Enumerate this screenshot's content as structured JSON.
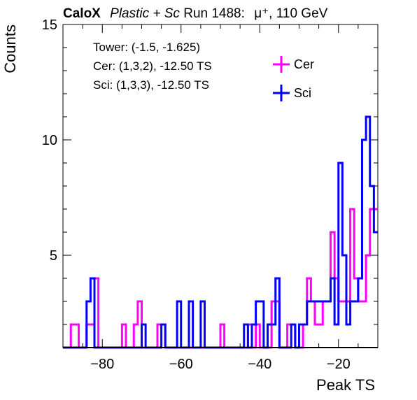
{
  "chart_data": {
    "type": "histogram",
    "title": {
      "experiment": "CaloX",
      "material_italic": "Plastic + Sc",
      "run": "Run 1488:",
      "particle": "μ⁺, 110 GeV"
    },
    "xlabel": "Peak TS",
    "ylabel": "Counts",
    "xlim": [
      -90,
      -10
    ],
    "ylim": [
      1,
      15
    ],
    "log_y": false,
    "x_ticks": [
      -80,
      -60,
      -40,
      -20
    ],
    "x_tick_labels": [
      "−80",
      "−60",
      "−40",
      "−20"
    ],
    "y_ticks": [
      5,
      10,
      15
    ],
    "y_tick_labels": [
      "5",
      "10",
      "15"
    ],
    "bin_width": 1,
    "info_box": [
      "Tower: (-1.5, -1.625)",
      "Cer: (1,3,2), -12.50 TS",
      "Sci: (1,3,3), -12.50 TS"
    ],
    "legend_position": "top-right",
    "series": [
      {
        "name": "Cer",
        "color": "#ff00ff",
        "bins": [
          [
            -88,
            2
          ],
          [
            -87,
            2
          ],
          [
            -84,
            2
          ],
          [
            -83,
            2
          ],
          [
            -82,
            4
          ],
          [
            -75,
            2
          ],
          [
            -72,
            2
          ],
          [
            -71,
            3
          ],
          [
            -66,
            2
          ],
          [
            -65,
            2
          ],
          [
            -50,
            2
          ],
          [
            -43,
            2
          ],
          [
            -41,
            2
          ],
          [
            -37,
            3
          ],
          [
            -36,
            3
          ],
          [
            -33,
            2
          ],
          [
            -32,
            2
          ],
          [
            -29,
            2
          ],
          [
            -28,
            4
          ],
          [
            -27,
            3
          ],
          [
            -26,
            2
          ],
          [
            -25,
            2
          ],
          [
            -24,
            3
          ],
          [
            -23,
            3
          ],
          [
            -22,
            6
          ],
          [
            -21,
            4
          ],
          [
            -20,
            3
          ],
          [
            -19,
            3
          ],
          [
            -18,
            3
          ],
          [
            -17,
            7
          ],
          [
            -16,
            4
          ],
          [
            -15,
            3
          ],
          [
            -14,
            3
          ],
          [
            -13,
            5
          ],
          [
            -12,
            7
          ],
          [
            -11,
            7
          ]
        ]
      },
      {
        "name": "Sci",
        "color": "#0000ff",
        "bins": [
          [
            -84,
            3
          ],
          [
            -83,
            4
          ],
          [
            -70,
            2
          ],
          [
            -65,
            2
          ],
          [
            -61,
            3
          ],
          [
            -58,
            3
          ],
          [
            -55,
            3
          ],
          [
            -44,
            2
          ],
          [
            -42,
            2
          ],
          [
            -41,
            3
          ],
          [
            -40,
            3
          ],
          [
            -38,
            2
          ],
          [
            -37,
            2
          ],
          [
            -36,
            4
          ],
          [
            -32,
            2
          ],
          [
            -30,
            2
          ],
          [
            -29,
            2
          ],
          [
            -28,
            3
          ],
          [
            -27,
            3
          ],
          [
            -26,
            3
          ],
          [
            -25,
            3
          ],
          [
            -24,
            3
          ],
          [
            -23,
            3
          ],
          [
            -22,
            4
          ],
          [
            -21,
            2
          ],
          [
            -20,
            9
          ],
          [
            -19,
            5
          ],
          [
            -18,
            2
          ],
          [
            -17,
            3
          ],
          [
            -16,
            3
          ],
          [
            -15,
            4
          ],
          [
            -14,
            10
          ],
          [
            -13,
            11
          ],
          [
            -12,
            8
          ],
          [
            -11,
            6
          ]
        ]
      }
    ]
  }
}
